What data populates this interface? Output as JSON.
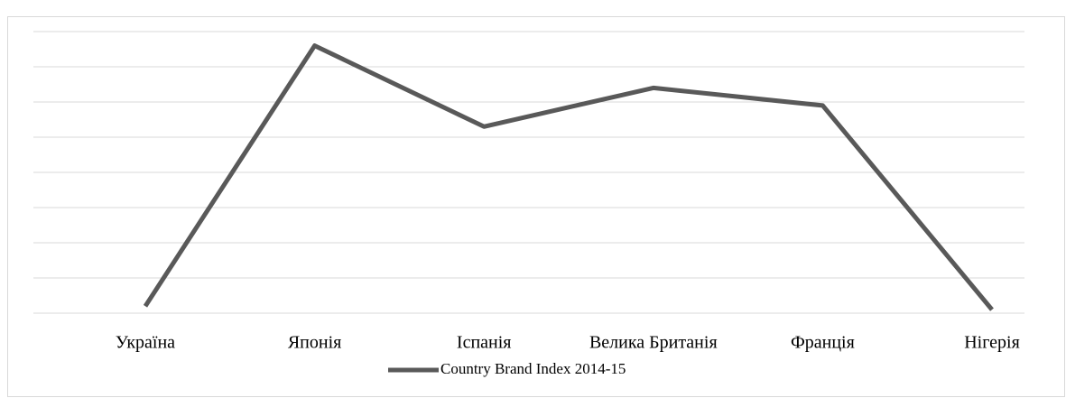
{
  "chart_data": {
    "type": "line",
    "categories": [
      "Україна",
      "Японія",
      "Іспанія",
      "Велика Британія",
      "Франція",
      "Нігерія"
    ],
    "series": [
      {
        "name": "Country Brand Index 2014-15",
        "color": "#595959",
        "values": [
          0.2,
          7.6,
          5.3,
          6.4,
          5.9,
          0.1
        ]
      }
    ],
    "ylim": [
      0,
      8
    ],
    "yticks": [
      0,
      1,
      2,
      3,
      4,
      5,
      6,
      7,
      8
    ],
    "ytick_labels": false,
    "grid": true,
    "legend": "bottom"
  }
}
